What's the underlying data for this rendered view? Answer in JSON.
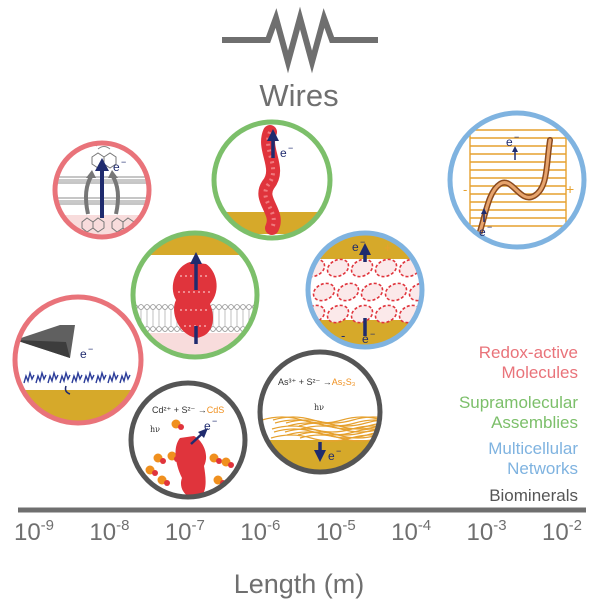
{
  "title": "Wires",
  "axis": {
    "label": "Length (m)",
    "ticks": [
      {
        "base": "10",
        "exp": "-9"
      },
      {
        "base": "10",
        "exp": "-8"
      },
      {
        "base": "10",
        "exp": "-7"
      },
      {
        "base": "10",
        "exp": "-6"
      },
      {
        "base": "10",
        "exp": "-5"
      },
      {
        "base": "10",
        "exp": "-4"
      },
      {
        "base": "10",
        "exp": "-3"
      },
      {
        "base": "10",
        "exp": "-2"
      }
    ]
  },
  "legend": [
    {
      "line1": "Redox-active",
      "line2": "Molecules",
      "color": "#e9737a"
    },
    {
      "line1": "Supramolecular",
      "line2": "Assemblies",
      "color": "#7cbf6a"
    },
    {
      "line1": "Multicellular",
      "line2": "Networks",
      "color": "#7fb3e0"
    },
    {
      "line1": "Biominerals",
      "line2": "",
      "color": "#555555"
    }
  ],
  "labels": {
    "electron": "e",
    "electron_charge": "−",
    "plus": "+",
    "minus": "-",
    "hv": "hν",
    "cds_reaction": {
      "lhs": "Cd²⁺ + S²⁻ →",
      "product": "CdS"
    },
    "as2s3_reaction": {
      "lhs": "As³⁺ + S²⁻ →",
      "product": "As₂S₃"
    }
  },
  "colors": {
    "redox": "#e9737a",
    "supra": "#7cbf6a",
    "network": "#7fb3e0",
    "biomineral": "#555555",
    "arrow": "#1f2b6e",
    "gold": "#d6a92a",
    "protein": "#e0343c",
    "orange": "#f0901e"
  }
}
